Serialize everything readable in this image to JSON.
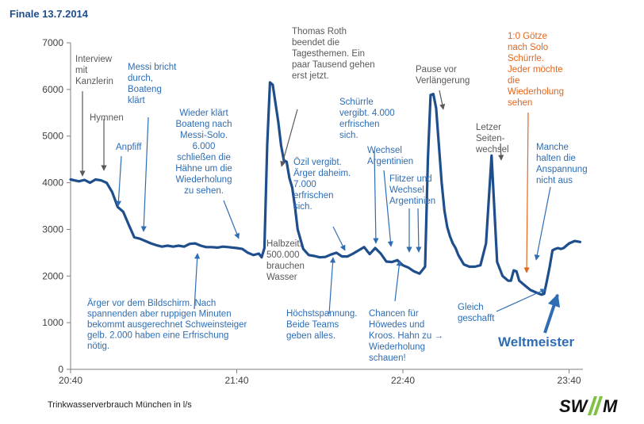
{
  "header": {
    "title": "Finale 13.7.2014"
  },
  "footer": {
    "caption": "Trinkwasserverbrauch München in l/s"
  },
  "logo": {
    "text": "SW//M",
    "icon": "swm-logo"
  },
  "colors": {
    "line": "#1f4e8c",
    "blue_text": "#2e6db4",
    "gray_text": "#595959",
    "orange_text": "#e2661d",
    "axis": "#7f7f7f"
  },
  "chart_data": {
    "type": "line",
    "title": "Finale 13.7.2014",
    "xlabel": "",
    "ylabel": "",
    "ylim": [
      0,
      7000
    ],
    "xlim_minutes": [
      0,
      185
    ],
    "x_ticks": [
      {
        "label": "20:40",
        "minute": 0
      },
      {
        "label": "21:40",
        "minute": 60
      },
      {
        "label": "22:40",
        "minute": 120
      },
      {
        "label": "23:40",
        "minute": 180
      }
    ],
    "y_ticks": [
      0,
      1000,
      2000,
      3000,
      4000,
      5000,
      6000,
      7000
    ],
    "grid": false,
    "series": [
      {
        "name": "",
        "x_minutes": [
          0,
          3,
          5,
          7,
          9,
          11,
          13,
          15,
          17,
          19,
          21,
          23,
          25,
          27,
          29,
          31,
          33,
          35,
          37,
          39,
          41,
          43,
          45,
          47,
          49,
          51,
          53,
          55,
          57,
          60,
          62,
          64,
          66,
          68,
          69,
          70,
          71,
          72,
          73,
          74,
          75,
          76,
          77,
          78,
          79,
          80,
          81,
          82,
          84,
          86,
          88,
          90,
          92,
          94,
          96,
          98,
          100,
          102,
          104,
          106,
          108,
          110,
          112,
          114,
          116,
          118,
          120,
          122,
          124,
          126,
          128,
          129,
          130,
          131,
          132,
          133,
          134,
          135,
          136,
          137,
          138,
          139,
          140,
          142,
          144,
          146,
          148,
          150,
          152,
          154,
          156,
          158,
          159,
          160,
          161,
          162,
          164,
          166,
          168,
          170,
          171,
          172,
          173,
          174,
          175,
          176,
          177,
          178,
          180,
          182,
          184
        ],
        "values": [
          4070,
          4030,
          4060,
          4000,
          4070,
          4050,
          4000,
          3800,
          3480,
          3380,
          3100,
          2830,
          2800,
          2750,
          2700,
          2660,
          2630,
          2650,
          2630,
          2650,
          2630,
          2690,
          2700,
          2650,
          2620,
          2620,
          2610,
          2630,
          2620,
          2600,
          2580,
          2500,
          2450,
          2480,
          2400,
          2600,
          4800,
          6150,
          6100,
          5700,
          5300,
          4800,
          4480,
          4450,
          4100,
          3900,
          3500,
          3000,
          2580,
          2450,
          2430,
          2400,
          2410,
          2460,
          2500,
          2420,
          2420,
          2480,
          2550,
          2620,
          2470,
          2600,
          2480,
          2310,
          2300,
          2340,
          2230,
          2180,
          2100,
          2050,
          2200,
          4500,
          5880,
          5900,
          5600,
          4800,
          4000,
          3400,
          3050,
          2850,
          2700,
          2600,
          2450,
          2250,
          2200,
          2200,
          2230,
          2700,
          4580,
          2300,
          2000,
          1900,
          1900,
          2120,
          2100,
          1900,
          1800,
          1700,
          1650,
          1600,
          1620,
          1900,
          2200,
          2550,
          2580,
          2600,
          2580,
          2600,
          2700,
          2750,
          2730
        ]
      }
    ],
    "annotations": [
      {
        "id": "interview",
        "color": "gray",
        "lines": [
          "Interview",
          "mit",
          "Kanzlerin"
        ]
      },
      {
        "id": "hymnen",
        "color": "gray",
        "lines": [
          "Hymnen"
        ]
      },
      {
        "id": "anpfiff",
        "color": "blue",
        "lines": [
          "Anpfiff"
        ]
      },
      {
        "id": "messi",
        "color": "blue",
        "lines": [
          "Messi bricht",
          "durch,",
          "Boateng",
          "klärt"
        ]
      },
      {
        "id": "wieder_klaert",
        "color": "blue",
        "lines": [
          "Wieder klärt",
          "Boateng nach",
          "Messi-Solo.",
          "6.000",
          "schließen die",
          "Hähne um die",
          "Wiederholung",
          "zu sehen."
        ]
      },
      {
        "id": "aerger",
        "color": "blue",
        "lines": [
          "Ärger vor dem Bildschirm. Nach",
          "spannenden aber ruppigen Minuten",
          "bekommt ausgerechnet Schweinsteiger",
          "gelb. 2.000 haben eine Erfrischung",
          "nötig."
        ]
      },
      {
        "id": "halbzeit",
        "color": "gray",
        "lines": [
          "Halbzeit.",
          "500.000",
          "brauchen",
          "Wasser"
        ]
      },
      {
        "id": "thomas_roth",
        "color": "gray",
        "lines": [
          "Thomas Roth",
          "beendet die",
          "Tagesthemen. Ein",
          "paar Tausend gehen",
          "erst jetzt."
        ]
      },
      {
        "id": "oezil",
        "color": "blue",
        "lines": [
          "Özil vergibt.",
          "Ärger daheim.",
          "7.000",
          "erfrischen",
          "sich."
        ]
      },
      {
        "id": "schuerrle",
        "color": "blue",
        "lines": [
          "Schürrle",
          "vergibt. 4.000",
          "erfrischen",
          "sich."
        ]
      },
      {
        "id": "wechsel_arg",
        "color": "blue",
        "lines": [
          "Wechsel",
          "Argentinien"
        ]
      },
      {
        "id": "flitzer",
        "color": "blue",
        "lines": [
          "Flitzer und",
          "Wechsel",
          "Argentinien"
        ]
      },
      {
        "id": "hoechstspannung",
        "color": "blue",
        "lines": [
          "Höchstspannung.",
          "Beide Teams",
          "geben alles."
        ]
      },
      {
        "id": "chancen",
        "color": "blue",
        "lines": [
          "Chancen für",
          "Höwedes und",
          "Kroos. Hahn zu →",
          "Wiederholung",
          "schauen!"
        ]
      },
      {
        "id": "pause",
        "color": "gray",
        "lines": [
          "Pause vor",
          "Verlängerung"
        ]
      },
      {
        "id": "seitenwechsel",
        "color": "gray",
        "lines": [
          "Letzer",
          "Seiten-",
          "wechsel"
        ]
      },
      {
        "id": "goetze",
        "color": "orange",
        "lines": [
          "1:0 Götze",
          "nach Solo",
          "Schürrle.",
          "Jeder möchte",
          "die",
          "Wiederholung",
          "sehen"
        ]
      },
      {
        "id": "anspannung",
        "color": "blue",
        "lines": [
          "Manche",
          "halten die",
          "Anspannung",
          "nicht aus"
        ]
      },
      {
        "id": "gleich",
        "color": "blue",
        "lines": [
          "Gleich",
          "geschafft"
        ]
      },
      {
        "id": "weltmeister",
        "color": "blue",
        "lines": [
          "Weltmeister"
        ]
      }
    ]
  }
}
